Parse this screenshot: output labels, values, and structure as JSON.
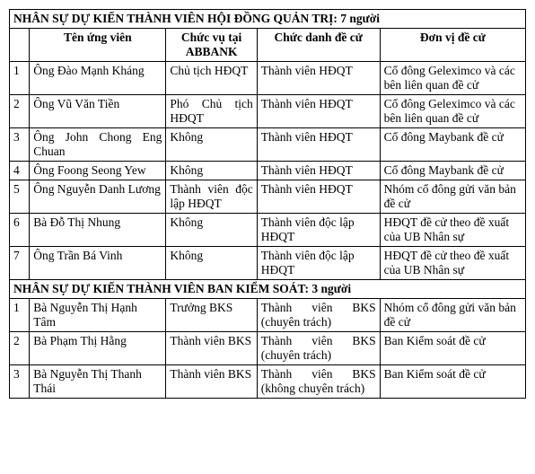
{
  "section1": {
    "header": "NHÂN SỰ DỰ KIẾN THÀNH VIÊN HỘI ĐỒNG QUẢN TRỊ: 7 người",
    "columns": {
      "num": "",
      "name": "Tên ứng viên",
      "position": "Chức vụ tại ABBANK",
      "title": "Chức danh đề cử",
      "unit": "Đơn vị đề cử"
    },
    "rows": [
      {
        "num": "1",
        "name": "Ông Đào Mạnh Kháng",
        "position": "Chủ tịch HĐQT",
        "title": "Thành viên HĐQT",
        "unit": "Cổ đông Geleximco và các bên liên quan đề cử"
      },
      {
        "num": "2",
        "name": "Ông Vũ Văn Tiền",
        "position": "Phó Chủ tịch HĐQT",
        "title": "Thành viên HĐQT",
        "unit": "Cổ đông Geleximco và các bên liên quan đề cử"
      },
      {
        "num": "3",
        "name": "Ông John Chong Eng Chuan",
        "position": "Không",
        "title": "Thành viên HĐQT",
        "unit": "Cổ đông Maybank đề cử"
      },
      {
        "num": "4",
        "name": "Ông Foong Seong Yew",
        "position": "Không",
        "title": "Thành viên HĐQT",
        "unit": "Cổ đông Maybank đề cử"
      },
      {
        "num": "5",
        "name": "Ông Nguyễn Danh Lương",
        "position": "Thành viên độc lập HĐQT",
        "title": "Thành viên HĐQT",
        "unit": "Nhóm cổ đông gửi văn bản đề cử"
      },
      {
        "num": "6",
        "name": "Bà Đỗ Thị Nhung",
        "position": "Không",
        "title": "Thành viên độc lập HĐQT",
        "unit": "HĐQT đề cử theo đề xuất của UB Nhân sự"
      },
      {
        "num": "7",
        "name": "Ông Trần Bá Vinh",
        "position": "Không",
        "title": "Thành viên độc lập HĐQT",
        "unit": "HĐQT đề cử theo đề xuất của UB Nhân sự"
      }
    ]
  },
  "section2": {
    "header": "NHÂN SỰ DỰ KIẾN THÀNH VIÊN BAN KIỂM SOÁT: 3 người",
    "rows": [
      {
        "num": "1",
        "name": "Bà Nguyễn Thị Hạnh Tâm",
        "position": "Trưởng BKS",
        "title": "Thành viên BKS (chuyên trách)",
        "unit": "Nhóm cổ đông gửi văn bản đề cử"
      },
      {
        "num": "2",
        "name": "Bà Phạm Thị Hằng",
        "position": "Thành viên BKS",
        "title": "Thành viên BKS (chuyên trách)",
        "unit": "Ban Kiểm soát đề cử"
      },
      {
        "num": "3",
        "name": "Bà Nguyễn Thị Thanh Thái",
        "position": "Thành viên BKS",
        "title": "Thành viên BKS (không chuyên trách)",
        "unit": "Ban Kiểm soát đề cử"
      }
    ]
  }
}
